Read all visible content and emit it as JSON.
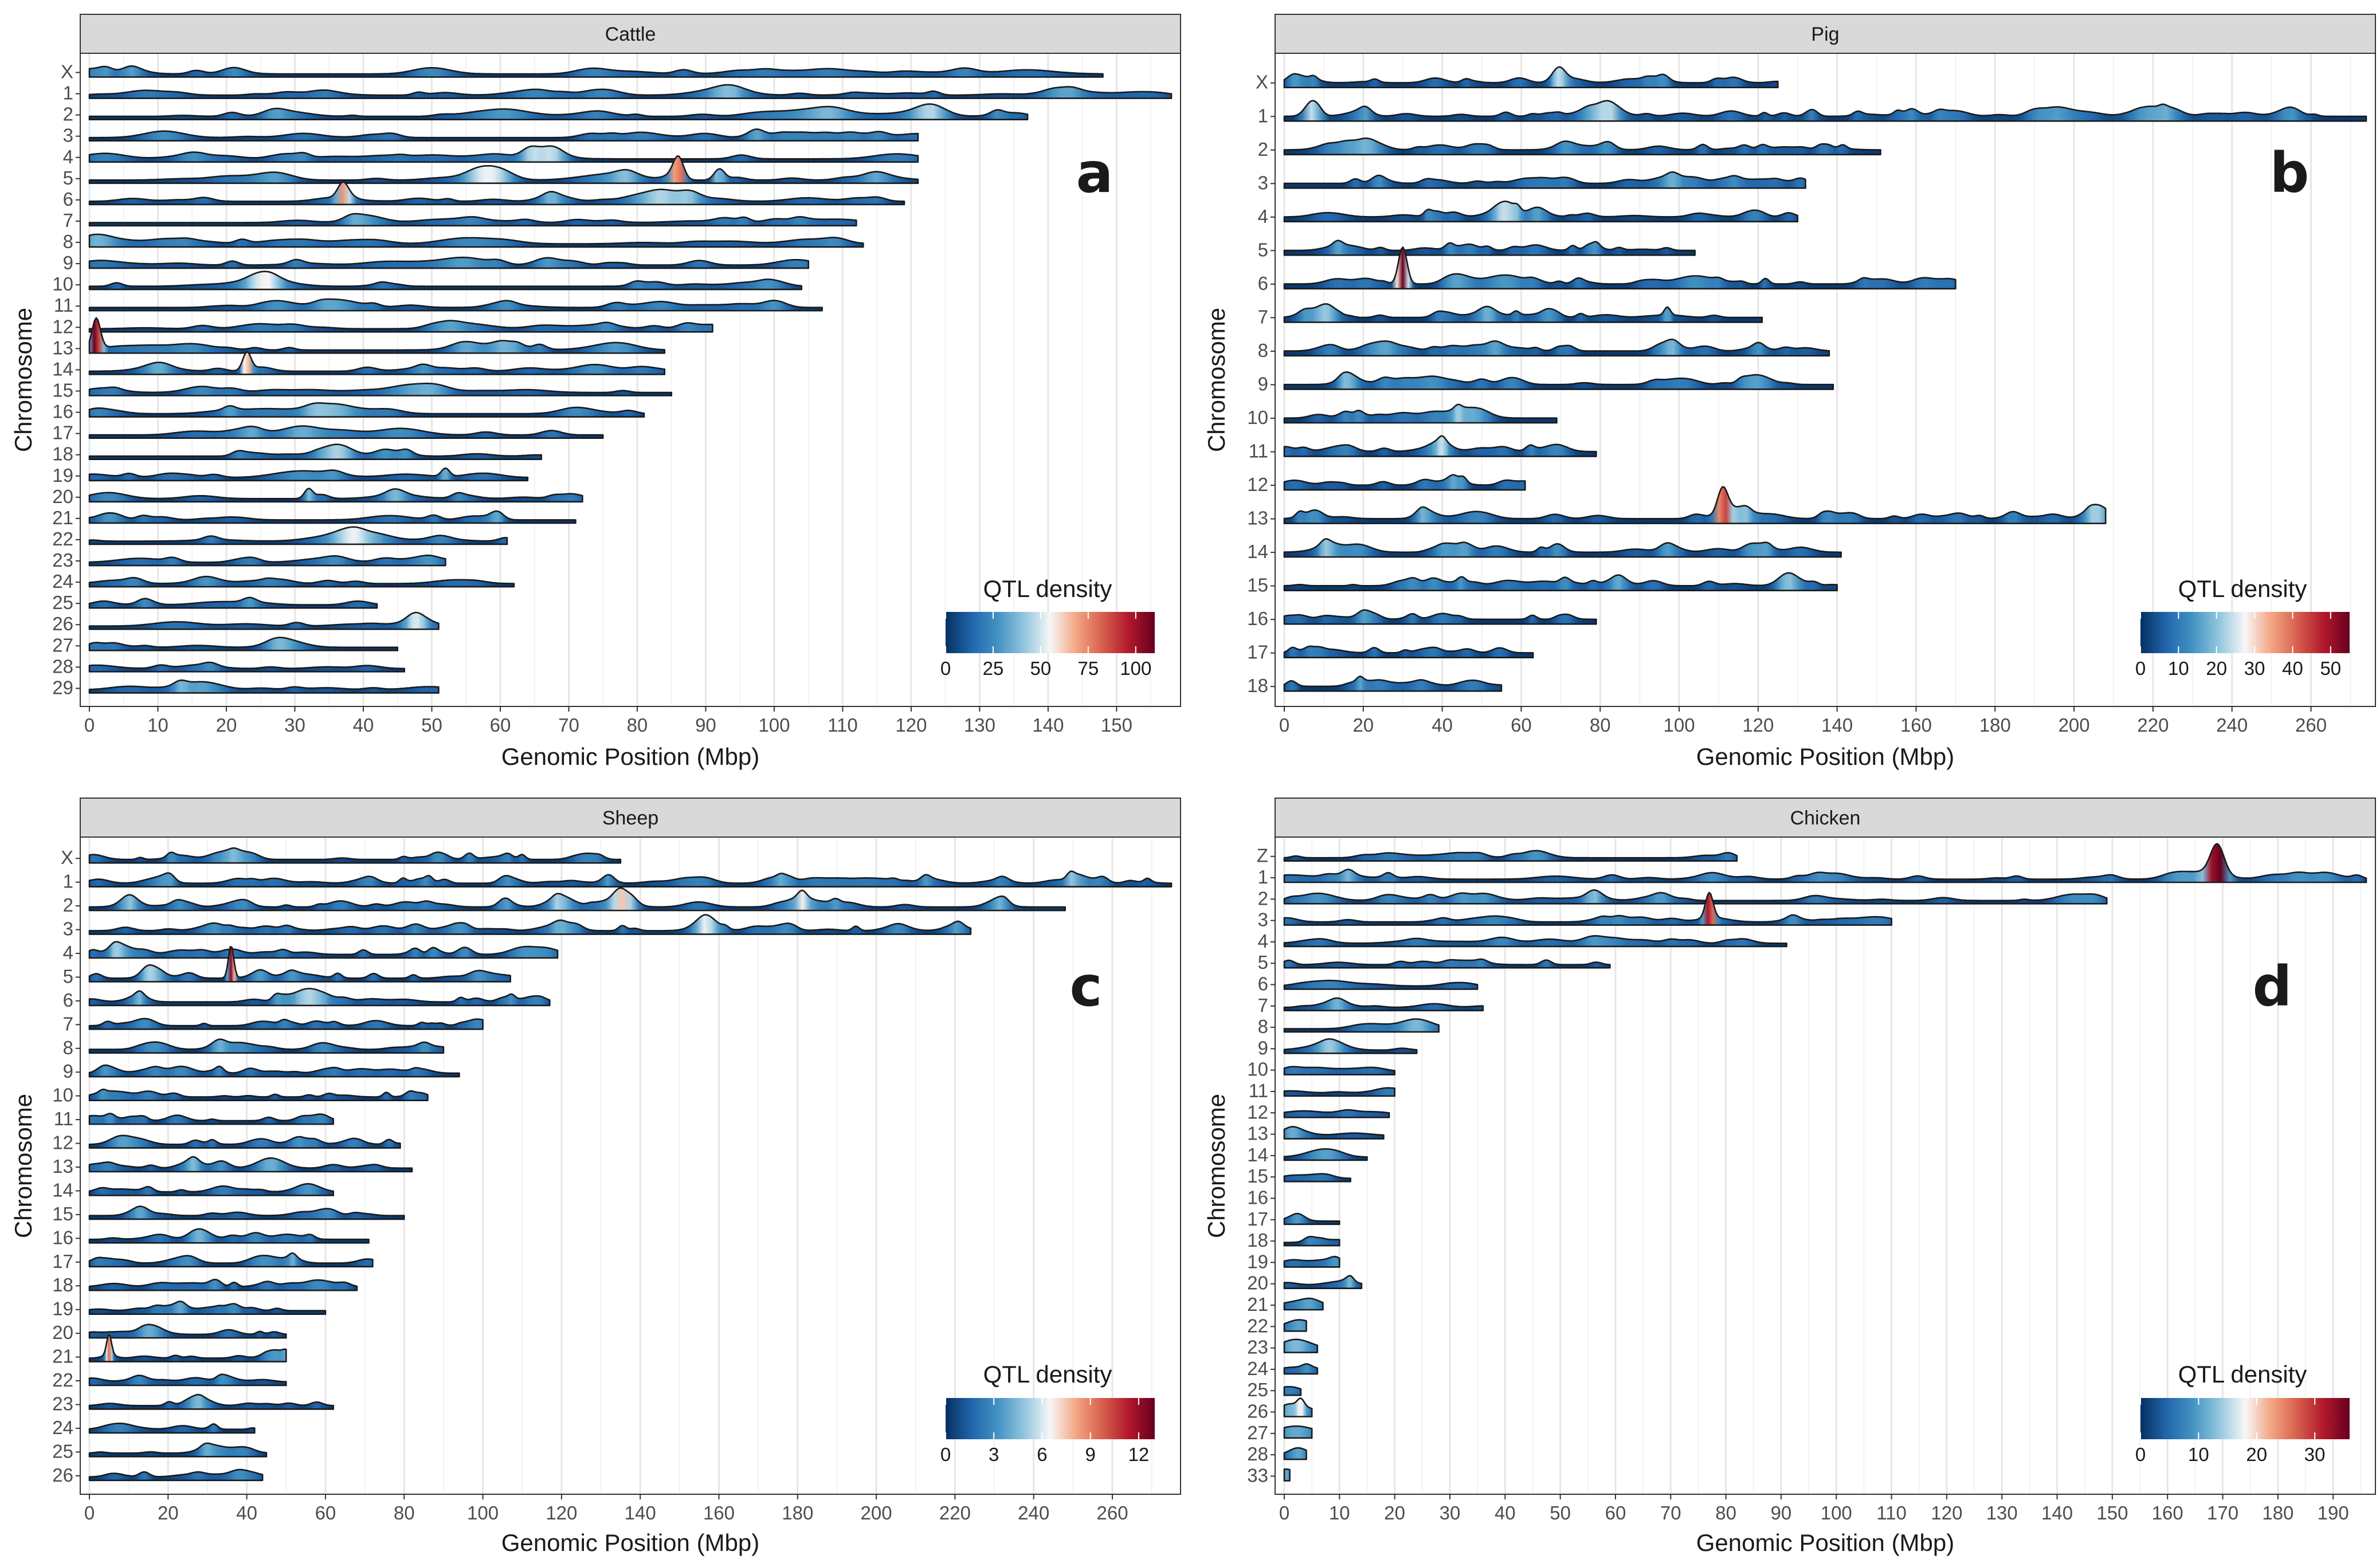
{
  "figure": {
    "colorscale": [
      "#053061",
      "#2166ac",
      "#4393c3",
      "#92c5de",
      "#f7f7f7",
      "#f4a582",
      "#d6604d",
      "#b2182b",
      "#67001f"
    ],
    "strip_fill": "#d9d9d9",
    "ridge_outline": "#1a1a1a"
  },
  "chart_data": [
    {
      "type": "ridgeline",
      "panel_id": "a",
      "title": "Cattle",
      "letter": "a",
      "xlabel": "Genomic Position (Mbp)",
      "ylabel": "Chromosome",
      "xlim": [
        0,
        158
      ],
      "x_ticks": [
        0,
        10,
        20,
        30,
        40,
        50,
        60,
        70,
        80,
        90,
        100,
        110,
        120,
        130,
        140,
        150
      ],
      "x_tick_labels": [
        "0",
        "10",
        "20",
        "30",
        "40",
        "50",
        "60",
        "70",
        "80",
        "90",
        "100",
        "110",
        "120",
        "130",
        "140",
        "150"
      ],
      "legend": {
        "title": "QTL density",
        "range": [
          0,
          110
        ],
        "ticks": [
          0,
          25,
          50,
          75,
          100
        ],
        "tick_labels": [
          "0",
          "25",
          "50",
          "75",
          "100"
        ]
      },
      "chromosomes": [
        {
          "label": "X",
          "length": 148
        },
        {
          "label": "1",
          "length": 158
        },
        {
          "label": "2",
          "length": 137
        },
        {
          "label": "3",
          "length": 121
        },
        {
          "label": "4",
          "length": 121
        },
        {
          "label": "5",
          "length": 121
        },
        {
          "label": "6",
          "length": 119
        },
        {
          "label": "7",
          "length": 112
        },
        {
          "label": "8",
          "length": 113
        },
        {
          "label": "9",
          "length": 105
        },
        {
          "label": "10",
          "length": 104
        },
        {
          "label": "11",
          "length": 107
        },
        {
          "label": "12",
          "length": 91
        },
        {
          "label": "13",
          "length": 84
        },
        {
          "label": "14",
          "length": 84
        },
        {
          "label": "15",
          "length": 85
        },
        {
          "label": "16",
          "length": 81
        },
        {
          "label": "17",
          "length": 75
        },
        {
          "label": "18",
          "length": 66
        },
        {
          "label": "19",
          "length": 64
        },
        {
          "label": "20",
          "length": 72
        },
        {
          "label": "21",
          "length": 71
        },
        {
          "label": "22",
          "length": 61
        },
        {
          "label": "23",
          "length": 52
        },
        {
          "label": "24",
          "length": 62
        },
        {
          "label": "25",
          "length": 42
        },
        {
          "label": "26",
          "length": 51
        },
        {
          "label": "27",
          "length": 45
        },
        {
          "label": "28",
          "length": 46
        },
        {
          "label": "29",
          "length": 51
        }
      ],
      "peaks": [
        {
          "chrom": "5",
          "pos": 86,
          "value": 80
        },
        {
          "chrom": "5",
          "pos": 92,
          "value": 40
        },
        {
          "chrom": "6",
          "pos": 37,
          "value": 50
        },
        {
          "chrom": "13",
          "pos": 1,
          "value": 110
        },
        {
          "chrom": "14",
          "pos": 23,
          "value": 65
        },
        {
          "chrom": "19",
          "pos": 52,
          "value": 30
        },
        {
          "chrom": "20",
          "pos": 32,
          "value": 35
        }
      ]
    },
    {
      "type": "ridgeline",
      "panel_id": "b",
      "title": "Pig",
      "letter": "b",
      "xlabel": "Genomic Position (Mbp)",
      "ylabel": "Chromosome",
      "xlim": [
        0,
        274
      ],
      "x_ticks": [
        0,
        20,
        40,
        60,
        80,
        100,
        120,
        140,
        160,
        180,
        200,
        220,
        240,
        260
      ],
      "x_tick_labels": [
        "0",
        "20",
        "40",
        "60",
        "80",
        "100",
        "120",
        "140",
        "160",
        "180",
        "200",
        "220",
        "240",
        "260"
      ],
      "legend": {
        "title": "QTL density",
        "range": [
          0,
          55
        ],
        "ticks": [
          0,
          10,
          20,
          30,
          40,
          50
        ],
        "tick_labels": [
          "0",
          "10",
          "20",
          "30",
          "40",
          "50"
        ]
      },
      "chromosomes": [
        {
          "label": "X",
          "length": 125
        },
        {
          "label": "1",
          "length": 274
        },
        {
          "label": "2",
          "length": 151
        },
        {
          "label": "3",
          "length": 132
        },
        {
          "label": "4",
          "length": 130
        },
        {
          "label": "5",
          "length": 104
        },
        {
          "label": "6",
          "length": 170
        },
        {
          "label": "7",
          "length": 121
        },
        {
          "label": "8",
          "length": 138
        },
        {
          "label": "9",
          "length": 139
        },
        {
          "label": "10",
          "length": 69
        },
        {
          "label": "11",
          "length": 79
        },
        {
          "label": "12",
          "length": 61
        },
        {
          "label": "13",
          "length": 208
        },
        {
          "label": "14",
          "length": 141
        },
        {
          "label": "15",
          "length": 140
        },
        {
          "label": "16",
          "length": 79
        },
        {
          "label": "17",
          "length": 63
        },
        {
          "label": "18",
          "length": 55
        }
      ],
      "peaks": [
        {
          "chrom": "1",
          "pos": 7,
          "value": 22
        },
        {
          "chrom": "6",
          "pos": 30,
          "value": 55
        },
        {
          "chrom": "13",
          "pos": 111,
          "value": 40
        },
        {
          "chrom": "7",
          "pos": 97,
          "value": 12
        }
      ]
    },
    {
      "type": "ridgeline",
      "panel_id": "c",
      "title": "Sheep",
      "letter": "c",
      "xlabel": "Genomic Position (Mbp)",
      "ylabel": "Chromosome",
      "xlim": [
        0,
        275
      ],
      "x_ticks": [
        0,
        20,
        40,
        60,
        80,
        100,
        120,
        140,
        160,
        180,
        200,
        220,
        240,
        260
      ],
      "x_tick_labels": [
        "0",
        "20",
        "40",
        "60",
        "80",
        "100",
        "120",
        "140",
        "160",
        "180",
        "200",
        "220",
        "240",
        "260"
      ],
      "legend": {
        "title": "QTL density",
        "range": [
          0,
          13
        ],
        "ticks": [
          0,
          3,
          6,
          9,
          12
        ],
        "tick_labels": [
          "0",
          "3",
          "6",
          "9",
          "12"
        ]
      },
      "chromosomes": [
        {
          "label": "X",
          "length": 135
        },
        {
          "label": "1",
          "length": 275
        },
        {
          "label": "2",
          "length": 248
        },
        {
          "label": "3",
          "length": 224
        },
        {
          "label": "4",
          "length": 119
        },
        {
          "label": "5",
          "length": 107
        },
        {
          "label": "6",
          "length": 117
        },
        {
          "label": "7",
          "length": 100
        },
        {
          "label": "8",
          "length": 90
        },
        {
          "label": "9",
          "length": 94
        },
        {
          "label": "10",
          "length": 86
        },
        {
          "label": "11",
          "length": 62
        },
        {
          "label": "12",
          "length": 79
        },
        {
          "label": "13",
          "length": 82
        },
        {
          "label": "14",
          "length": 62
        },
        {
          "label": "15",
          "length": 80
        },
        {
          "label": "16",
          "length": 71
        },
        {
          "label": "17",
          "length": 72
        },
        {
          "label": "18",
          "length": 68
        },
        {
          "label": "19",
          "length": 60
        },
        {
          "label": "20",
          "length": 50
        },
        {
          "label": "21",
          "length": 50
        },
        {
          "label": "22",
          "length": 50
        },
        {
          "label": "23",
          "length": 62
        },
        {
          "label": "24",
          "length": 42
        },
        {
          "label": "25",
          "length": 45
        },
        {
          "label": "26",
          "length": 44
        }
      ],
      "peaks": [
        {
          "chrom": "5",
          "pos": 36,
          "value": 12.5
        },
        {
          "chrom": "2",
          "pos": 135,
          "value": 5
        },
        {
          "chrom": "21",
          "pos": 5,
          "value": 8
        }
      ]
    },
    {
      "type": "ridgeline",
      "panel_id": "d",
      "title": "Chicken",
      "letter": "d",
      "xlabel": "Genomic Position (Mbp)",
      "ylabel": "Chromosome",
      "xlim": [
        0,
        196
      ],
      "x_ticks": [
        0,
        10,
        20,
        30,
        40,
        50,
        60,
        70,
        80,
        90,
        100,
        110,
        120,
        130,
        140,
        150,
        160,
        170,
        180,
        190
      ],
      "x_tick_labels": [
        "0",
        "10",
        "20",
        "30",
        "40",
        "50",
        "60",
        "70",
        "80",
        "90",
        "100",
        "110",
        "120",
        "130",
        "140",
        "150",
        "160",
        "170",
        "180",
        "190"
      ],
      "legend": {
        "title": "QTL density",
        "range": [
          0,
          36
        ],
        "ticks": [
          0,
          10,
          20,
          30
        ],
        "tick_labels": [
          "0",
          "10",
          "20",
          "30"
        ]
      },
      "chromosomes": [
        {
          "label": "Z",
          "length": 82
        },
        {
          "label": "1",
          "length": 196
        },
        {
          "label": "2",
          "length": 149
        },
        {
          "label": "3",
          "length": 110
        },
        {
          "label": "4",
          "length": 91
        },
        {
          "label": "5",
          "length": 59
        },
        {
          "label": "6",
          "length": 35
        },
        {
          "label": "7",
          "length": 36
        },
        {
          "label": "8",
          "length": 28
        },
        {
          "label": "9",
          "length": 24
        },
        {
          "label": "10",
          "length": 20
        },
        {
          "label": "11",
          "length": 20
        },
        {
          "label": "12",
          "length": 19
        },
        {
          "label": "13",
          "length": 18
        },
        {
          "label": "14",
          "length": 15
        },
        {
          "label": "15",
          "length": 12
        },
        {
          "label": "16",
          "length": 0.5
        },
        {
          "label": "17",
          "length": 10
        },
        {
          "label": "18",
          "length": 10
        },
        {
          "label": "19",
          "length": 10
        },
        {
          "label": "20",
          "length": 14
        },
        {
          "label": "21",
          "length": 7
        },
        {
          "label": "22",
          "length": 4
        },
        {
          "label": "23",
          "length": 6
        },
        {
          "label": "24",
          "length": 6
        },
        {
          "label": "25",
          "length": 3
        },
        {
          "label": "26",
          "length": 5
        },
        {
          "label": "27",
          "length": 5
        },
        {
          "label": "28",
          "length": 4
        },
        {
          "label": "33",
          "length": 1
        }
      ],
      "peaks": [
        {
          "chrom": "1",
          "pos": 169,
          "value": 35
        },
        {
          "chrom": "3",
          "pos": 77,
          "value": 30
        },
        {
          "chrom": "20",
          "pos": 12,
          "value": 6
        },
        {
          "chrom": "26",
          "pos": 3,
          "value": 8
        }
      ]
    }
  ]
}
